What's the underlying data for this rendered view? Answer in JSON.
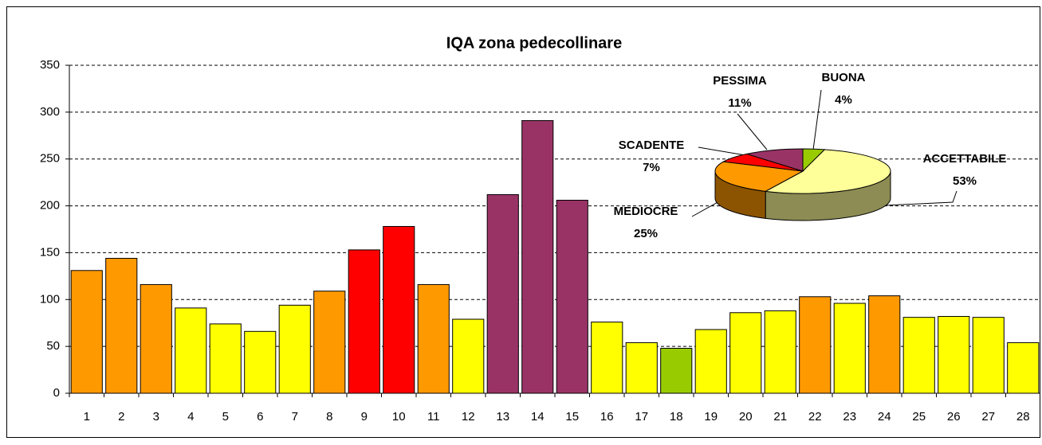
{
  "chart_data": [
    {
      "type": "bar",
      "title": "IQA zona pedecollinare",
      "categories": [
        1,
        2,
        3,
        4,
        5,
        6,
        7,
        8,
        9,
        10,
        11,
        12,
        13,
        14,
        15,
        16,
        17,
        18,
        19,
        20,
        21,
        22,
        23,
        24,
        25,
        26,
        27,
        28
      ],
      "values": [
        131,
        144,
        116,
        91,
        74,
        66,
        94,
        109,
        153,
        178,
        116,
        79,
        212,
        291,
        206,
        76,
        54,
        48,
        68,
        86,
        88,
        103,
        96,
        104,
        81,
        82,
        81,
        54
      ],
      "colors": [
        "#FF9900",
        "#FF9900",
        "#FF9900",
        "#FFFF00",
        "#FFFF00",
        "#FFFF00",
        "#FFFF00",
        "#FF9900",
        "#FF0000",
        "#FF0000",
        "#FF9900",
        "#FFFF00",
        "#993366",
        "#993366",
        "#993366",
        "#FFFF00",
        "#FFFF00",
        "#99CC00",
        "#FFFF00",
        "#FFFF00",
        "#FFFF00",
        "#FF9900",
        "#FFFF00",
        "#FF9900",
        "#FFFF00",
        "#FFFF00",
        "#FFFF00",
        "#FFFF00"
      ],
      "ylim": [
        0,
        350
      ],
      "yticks": [
        0,
        50,
        100,
        150,
        200,
        250,
        300,
        350
      ],
      "grid": true
    },
    {
      "type": "pie",
      "categories": [
        "BUONA",
        "ACCETTABILE",
        "MEDIOCRE",
        "SCADENTE",
        "PESSIMA"
      ],
      "values": [
        4,
        53,
        25,
        7,
        11
      ],
      "value_labels": [
        "4%",
        "53%",
        "25%",
        "7%",
        "11%"
      ],
      "colors": [
        "#99CC00",
        "#FFFF99",
        "#FF9900",
        "#FF0000",
        "#993366"
      ]
    }
  ]
}
